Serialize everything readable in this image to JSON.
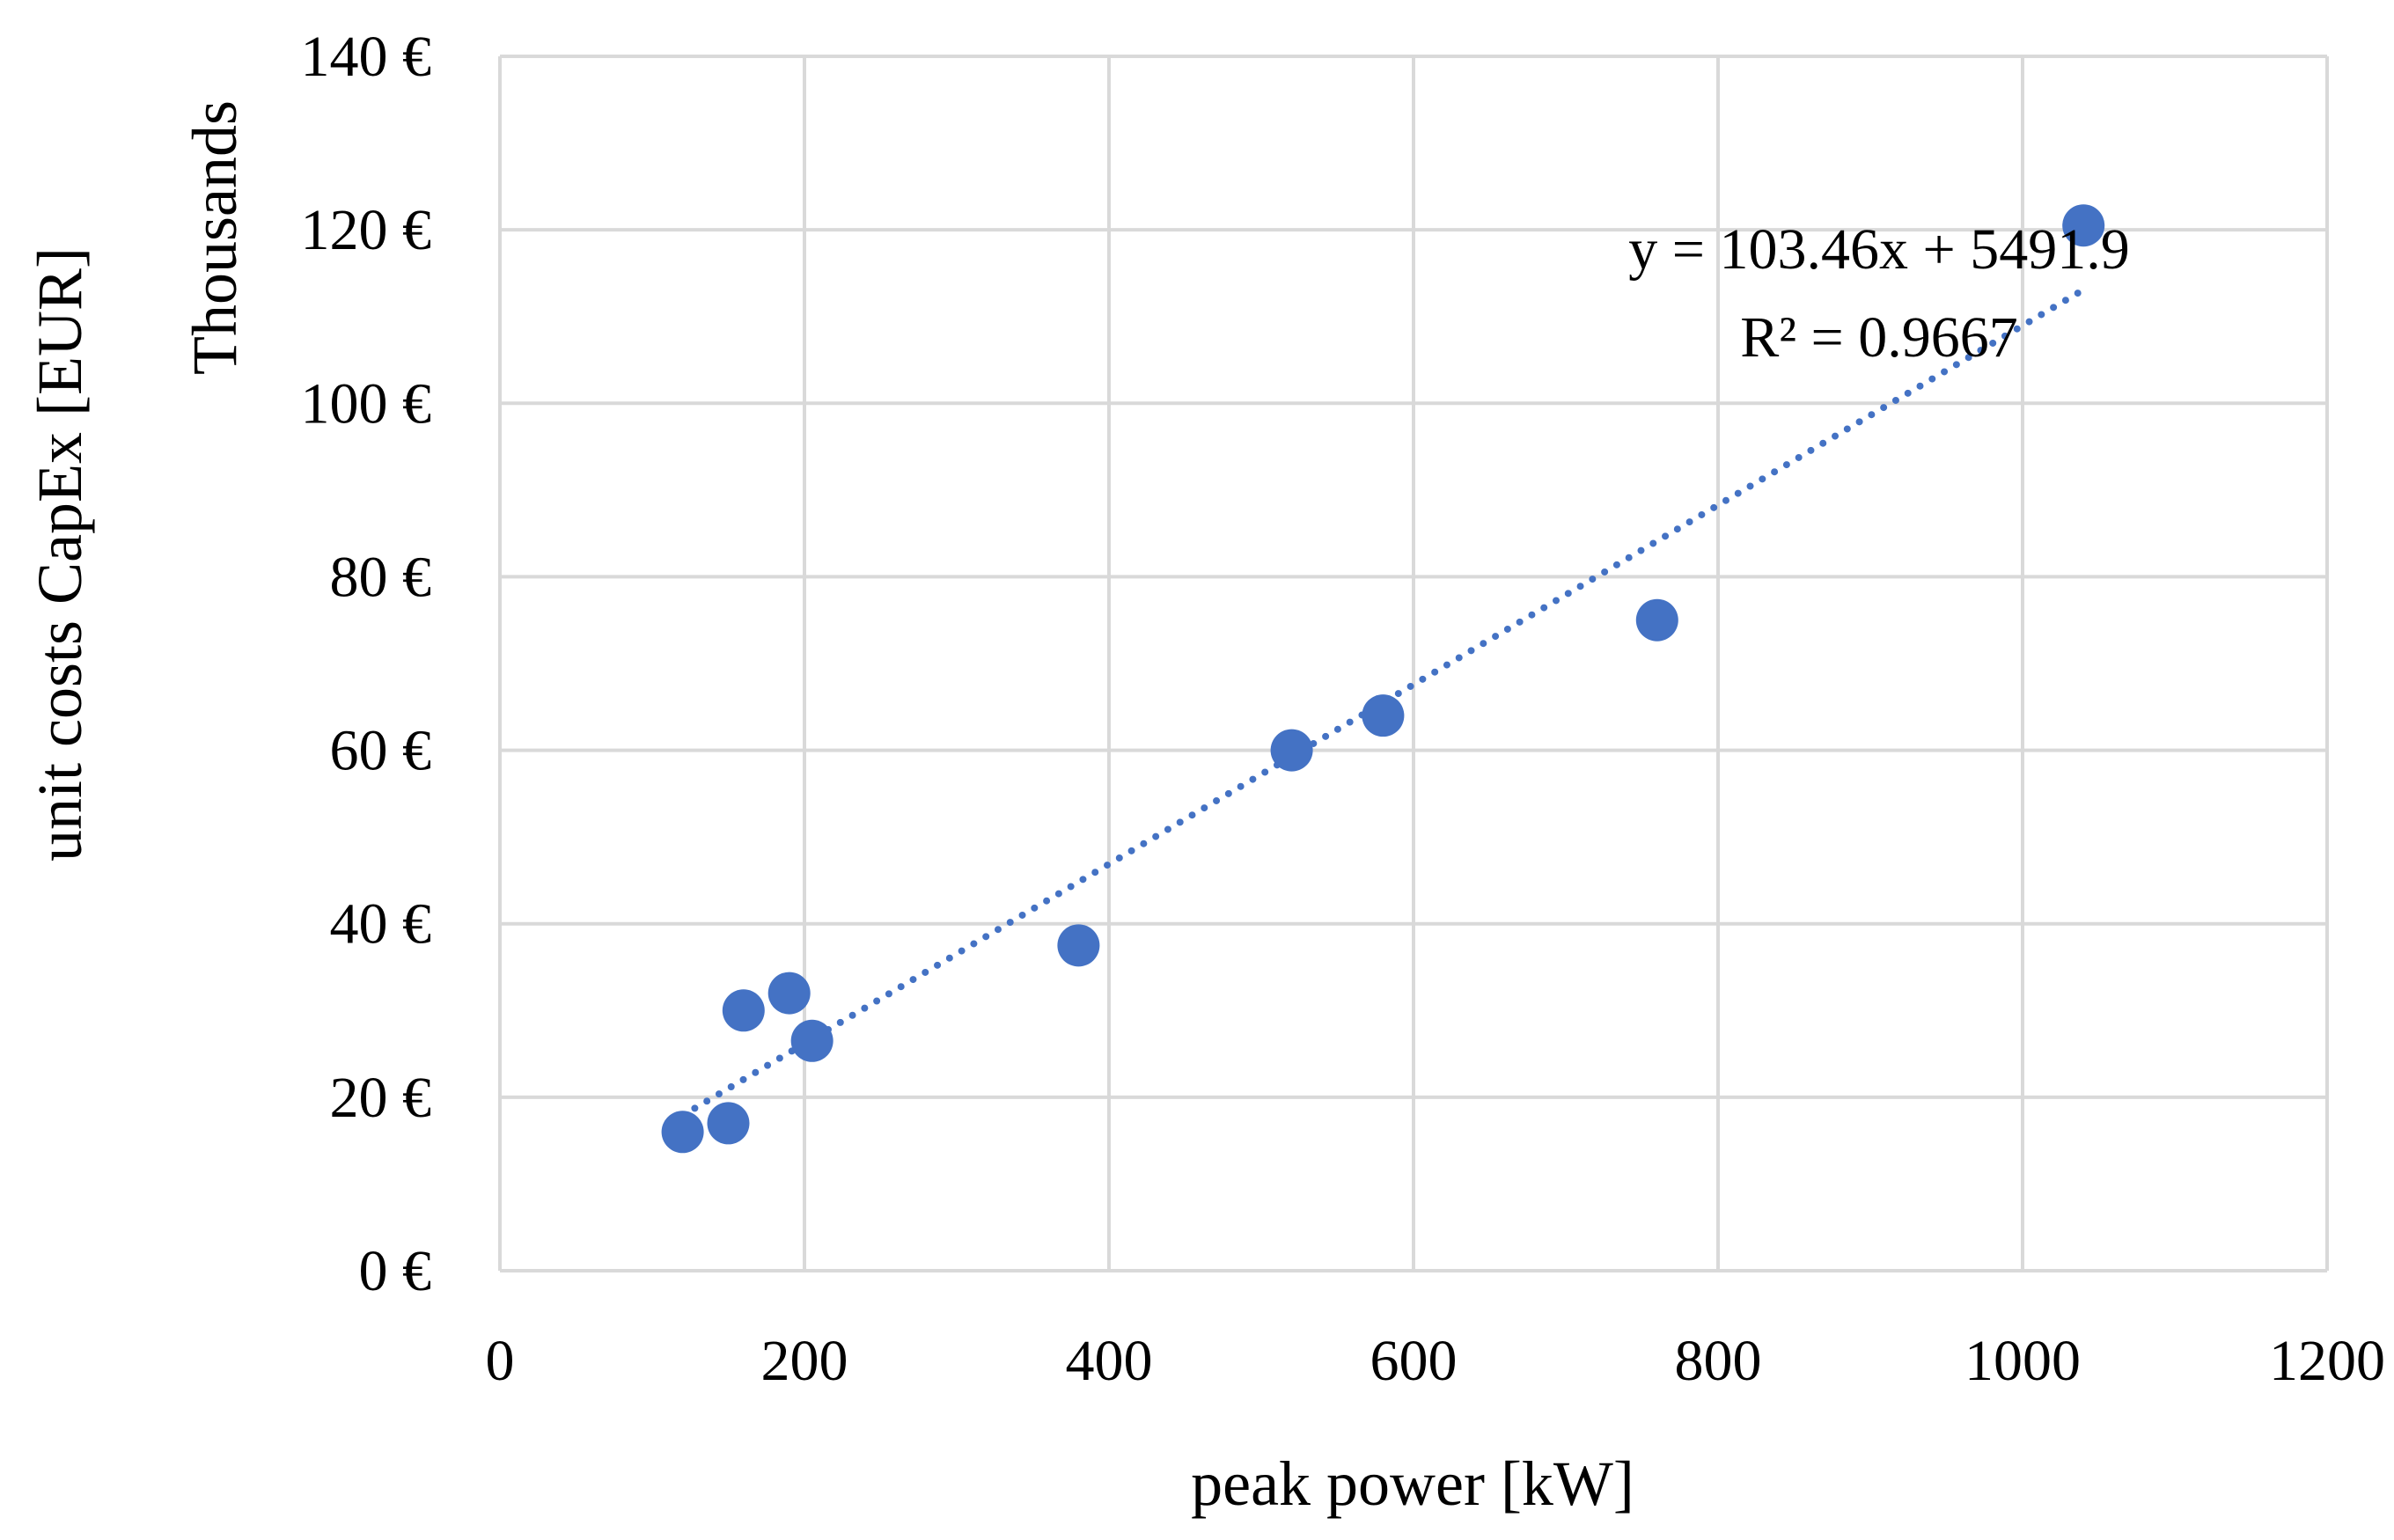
{
  "chart_data": {
    "type": "scatter",
    "title": "",
    "xlabel": "peak power [kW]",
    "ylabel": "unit costs CapEx [EUR]",
    "ydisplay_unit": "Thousands",
    "xlim": [
      0,
      1200
    ],
    "ylim": [
      0,
      140000
    ],
    "xticks": [
      0,
      200,
      400,
      600,
      800,
      1000,
      1200
    ],
    "xtick_labels": [
      "0",
      "200",
      "400",
      "600",
      "800",
      "1000",
      "1200"
    ],
    "yticks": [
      0,
      20000,
      40000,
      60000,
      80000,
      100000,
      120000,
      140000
    ],
    "ytick_labels": [
      "0 €",
      "20 €",
      "40 €",
      "60 €",
      "80 €",
      "100 €",
      "120 €",
      "140 €"
    ],
    "grid": true,
    "legend": "none",
    "series": [
      {
        "name": "unit costs",
        "color": "#4472c4",
        "x": [
          120,
          150,
          160,
          190,
          205,
          380,
          520,
          580,
          760,
          1040
        ],
        "y": [
          16000,
          17000,
          30000,
          32000,
          26500,
          37500,
          60000,
          64000,
          75000,
          120500
        ]
      }
    ],
    "trendline": {
      "type": "linear",
      "color": "#4472c4",
      "slope": 103.46,
      "intercept": 5491.9,
      "x_range": [
        120,
        1040
      ],
      "equation_label": "y = 103.46x + 5491.9",
      "r2_label": "R² = 0.9667"
    }
  }
}
